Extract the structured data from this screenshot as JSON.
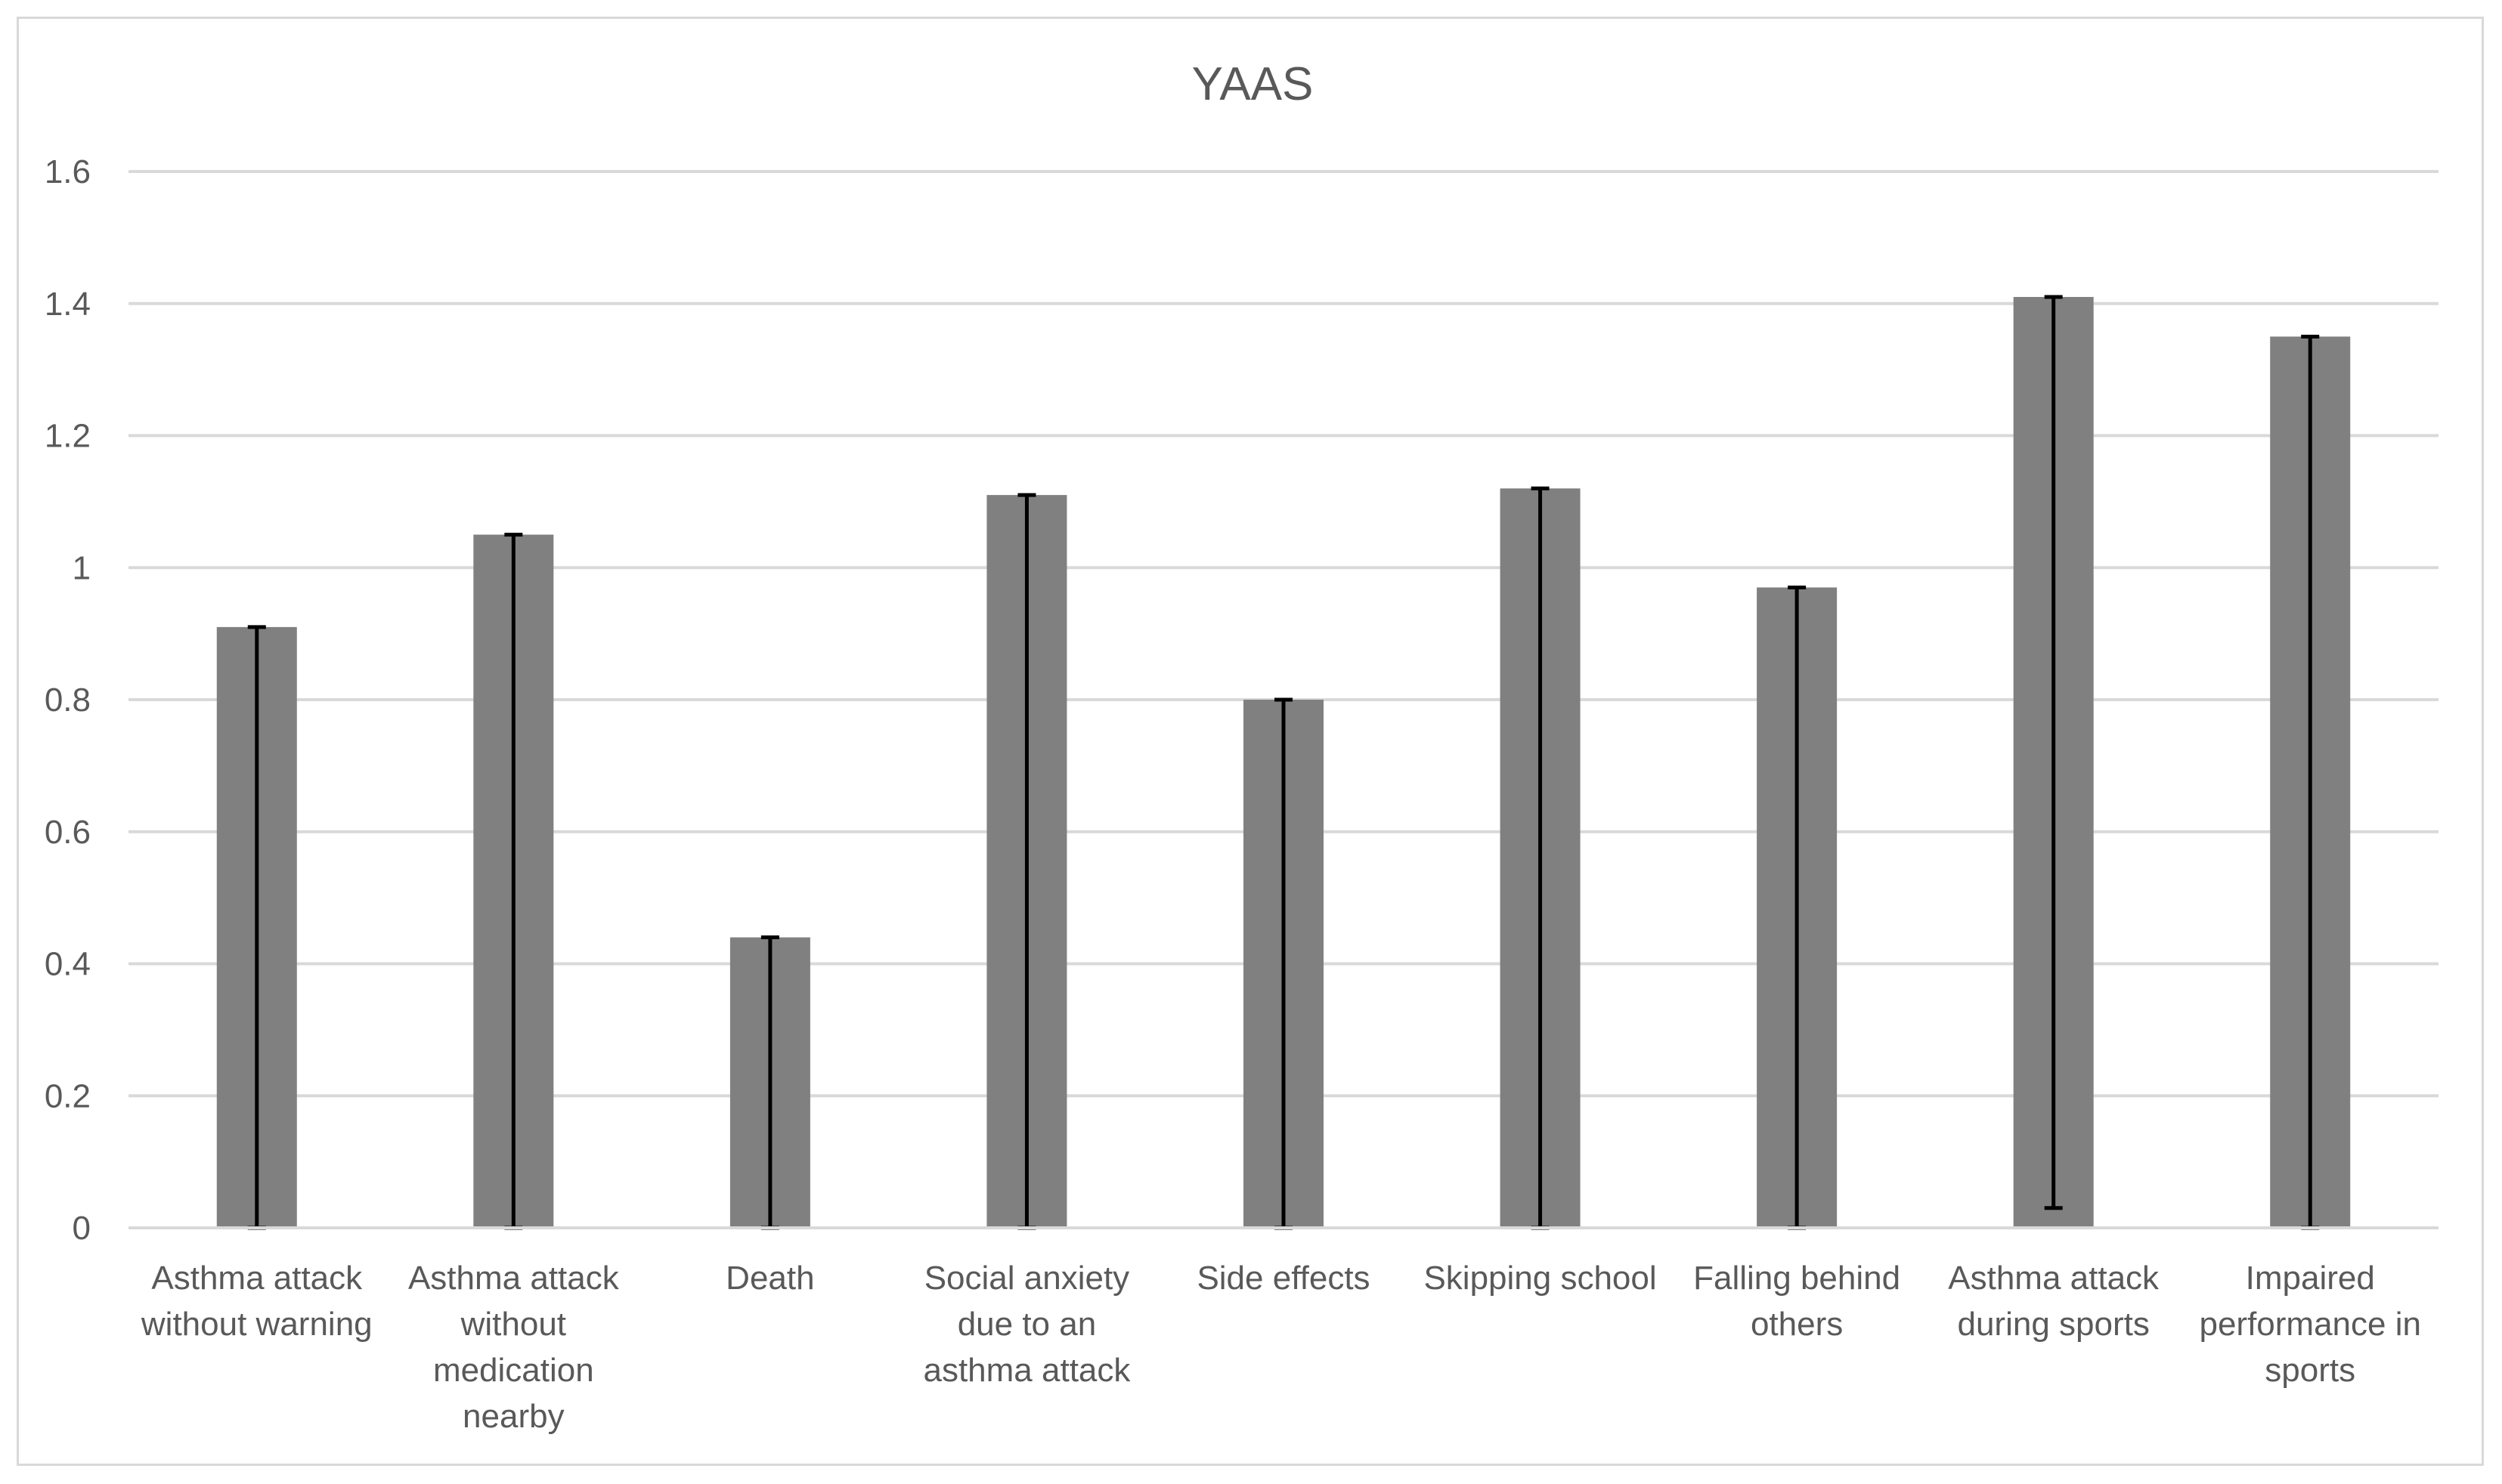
{
  "chart_data": {
    "type": "bar",
    "title": "YAAS",
    "xlabel": "",
    "ylabel": "",
    "ylim": [
      0,
      1.6
    ],
    "yticks": [
      0,
      0.2,
      0.4,
      0.6,
      0.8,
      1,
      1.2,
      1.4,
      1.6
    ],
    "ytick_labels": [
      "0",
      "0.2",
      "0.4",
      "0.6",
      "0.8",
      "1",
      "1.2",
      "1.4",
      "1.6"
    ],
    "grid": true,
    "legend": "none",
    "bar_color": "#808080",
    "error_color": "#000000",
    "categories": [
      [
        "Asthma attack",
        "without warning"
      ],
      [
        "Asthma attack",
        "without",
        "medication",
        "nearby"
      ],
      [
        "Death"
      ],
      [
        "Social anxiety",
        "due to an",
        "asthma attack"
      ],
      [
        "Side effects"
      ],
      [
        "Skipping school"
      ],
      [
        "Falling behind",
        "others"
      ],
      [
        "Asthma attack",
        "during sports"
      ],
      [
        "Impaired",
        "performance in",
        "sports"
      ]
    ],
    "values": [
      0.91,
      1.05,
      0.44,
      1.11,
      0.8,
      1.12,
      0.97,
      1.41,
      1.35
    ],
    "error_bars": [
      {
        "low": 0,
        "high": 0.91
      },
      {
        "low": 0,
        "high": 1.05
      },
      {
        "low": 0,
        "high": 0.44
      },
      {
        "low": 0,
        "high": 1.11
      },
      {
        "low": 0,
        "high": 0.8
      },
      {
        "low": 0,
        "high": 1.12
      },
      {
        "low": 0,
        "high": 0.97
      },
      {
        "low": 0.03,
        "high": 1.41
      },
      {
        "low": 0,
        "high": 1.35
      }
    ]
  }
}
